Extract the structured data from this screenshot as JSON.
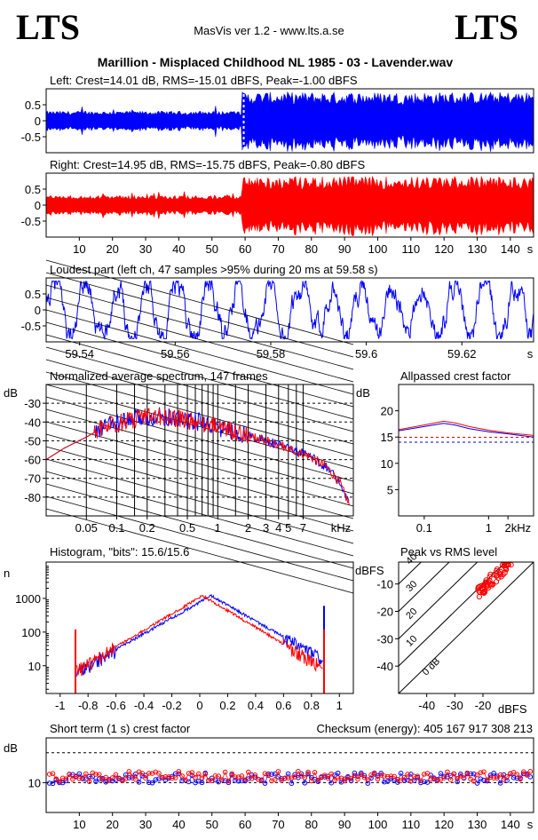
{
  "header": {
    "logo_left": "LTS",
    "logo_right": "LTS",
    "app": "MasVis ver 1.2 - www.lts.a.se",
    "title": "Marillion - Misplaced Childhood NL 1985 - 03 - Lavender.wav"
  },
  "colors": {
    "left": "#0000ff",
    "right": "#ff0000",
    "axis": "#000000"
  },
  "chart_data": [
    {
      "type": "area",
      "id": "left",
      "title": "Left: Crest=14.01 dB, RMS=-15.01 dBFS, Peak=-1.00 dBFS",
      "yticks": [
        "0.5",
        "0",
        "-0.5"
      ],
      "yvals": [
        0.5,
        0,
        -0.5
      ],
      "ylim": [
        -1,
        1
      ],
      "xlim": [
        0,
        147
      ],
      "marker_x": 59.58,
      "envelope": {
        "x": [
          0,
          20,
          40,
          55,
          58.5,
          59.5,
          70,
          100,
          130,
          140,
          147
        ],
        "quiet": 0.25,
        "loud": 0.9
      }
    },
    {
      "type": "area",
      "id": "right",
      "title": "Right: Crest=14.95 dB, RMS=-15.75 dBFS, Peak=-0.80 dBFS",
      "yticks": [
        "0.5",
        "0",
        "-0.5"
      ],
      "yvals": [
        0.5,
        0,
        -0.5
      ],
      "ylim": [
        -1,
        1
      ],
      "xlim": [
        0,
        147
      ],
      "xticks": [
        "10",
        "20",
        "30",
        "40",
        "50",
        "60",
        "70",
        "80",
        "90",
        "100",
        "110",
        "120",
        "130",
        "140",
        "s"
      ],
      "xtickvals": [
        10,
        20,
        30,
        40,
        50,
        60,
        70,
        80,
        90,
        100,
        110,
        120,
        130,
        140
      ]
    },
    {
      "type": "line",
      "id": "loudest",
      "title": "Loudest part (left  ch, 47 samples >95% during 20 ms at 59.58 s)",
      "yticks": [
        "0.5",
        "0",
        "-0.5"
      ],
      "yvals": [
        0.5,
        0,
        -0.5
      ],
      "ylim": [
        -1,
        1
      ],
      "xlim": [
        59.533,
        59.635
      ],
      "xticks": [
        "59.54",
        "59.56",
        "59.58",
        "59.6",
        "59.62",
        "s"
      ],
      "xtickvals": [
        59.54,
        59.56,
        59.58,
        59.6,
        59.62
      ]
    },
    {
      "type": "line",
      "id": "spectrum",
      "title": "Normalized average spectrum, 147 frames",
      "ylabel": "dB",
      "yticks": [
        "-30",
        "-40",
        "-50",
        "-60",
        "-70",
        "-80"
      ],
      "yvals": [
        -30,
        -40,
        -50,
        -60,
        -70,
        -80
      ],
      "ylim": [
        -90,
        -20
      ],
      "xlim": [
        0.02,
        22
      ],
      "xticks": [
        "0.05",
        "0.1",
        "0.2",
        "0.5",
        "1",
        "2",
        "3",
        "4",
        "5",
        "7",
        "kHz"
      ],
      "xtickvals": [
        0.05,
        0.1,
        0.2,
        0.5,
        1,
        2,
        3,
        4,
        5,
        7
      ],
      "curve": {
        "x": [
          0.02,
          0.03,
          0.05,
          0.08,
          0.12,
          0.2,
          0.3,
          0.5,
          0.8,
          1.2,
          2,
          3,
          5,
          8,
          12,
          16,
          20
        ],
        "y": [
          -60,
          -54,
          -48,
          -42,
          -40,
          -37,
          -37,
          -39,
          -41,
          -44,
          -47,
          -50,
          -54,
          -58,
          -64,
          -72,
          -84
        ]
      }
    },
    {
      "type": "line",
      "id": "crest",
      "title": "Allpassed crest factor",
      "ylabel": "dB",
      "yticks": [
        "20",
        "15",
        "10",
        "5"
      ],
      "yvals": [
        20,
        15,
        10,
        5
      ],
      "ylim": [
        0,
        25
      ],
      "xlim": [
        0.04,
        5
      ],
      "xticks": [
        "0.1",
        "1",
        "2",
        "kHz"
      ],
      "xtickvals": [
        0.1,
        1,
        2
      ],
      "dashed_left": 14.01,
      "dashed_right": 14.95,
      "series": [
        {
          "name": "left",
          "x": [
            0.04,
            0.1,
            0.2,
            0.3,
            0.5,
            1,
            2,
            5
          ],
          "y": [
            16.2,
            17,
            17.6,
            17.3,
            16.6,
            16,
            15.6,
            15
          ]
        },
        {
          "name": "right",
          "x": [
            0.04,
            0.1,
            0.2,
            0.3,
            0.5,
            1,
            2,
            5
          ],
          "y": [
            16.4,
            17.3,
            18,
            17.7,
            17,
            16.3,
            15.8,
            15.3
          ]
        }
      ]
    },
    {
      "type": "line",
      "id": "histogram",
      "title": "Histogram, \"bits\": 15.6/15.6",
      "ylabel": "n",
      "yticks": [
        "1000",
        "100",
        "10"
      ],
      "yvals": [
        1000,
        100,
        10
      ],
      "ylim": [
        1.5,
        12000
      ],
      "xlim": [
        -1.1,
        1.1
      ],
      "xticks": [
        "-1",
        "-0.8",
        "-0.6",
        "-0.4",
        "-0.2",
        "0",
        "0.2",
        "0.4",
        "0.6",
        "0.8",
        "1"
      ],
      "xtickvals": [
        -1,
        -0.8,
        -0.6,
        -0.4,
        -0.2,
        0,
        0.2,
        0.4,
        0.6,
        0.8,
        1
      ],
      "spikes": [
        -0.89,
        0.89
      ]
    },
    {
      "type": "scatter",
      "id": "peakrms",
      "title": "Peak vs RMS level",
      "ylabel": "dBFS",
      "xlabel": "dBFS",
      "yticks": [
        "-10",
        "-20",
        "-30",
        "-40"
      ],
      "yvals": [
        -10,
        -20,
        -30,
        -40
      ],
      "ylim": [
        -50,
        -2
      ],
      "xlim": [
        -50,
        -2
      ],
      "xticks": [
        "-40",
        "-30",
        "-20"
      ],
      "xtickvals": [
        -40,
        -30,
        -20
      ],
      "diag_labels": [
        "40",
        "30",
        "20",
        "10",
        "0 dB"
      ],
      "diag_offsets": [
        40,
        30,
        20,
        10,
        0
      ]
    },
    {
      "type": "scatter",
      "id": "shortcrest",
      "title": "Short term (1 s) crest factor",
      "checksum": "Checksum (energy):   405 167 917 308 213",
      "ylabel": "dB",
      "yticks": [
        "10"
      ],
      "yvals": [
        10
      ],
      "ylim": [
        0,
        25
      ],
      "xlim": [
        0,
        147
      ],
      "xticks": [
        "10",
        "20",
        "30",
        "40",
        "50",
        "60",
        "70",
        "80",
        "90",
        "100",
        "110",
        "120",
        "130",
        "140",
        "s"
      ],
      "xtickvals": [
        10,
        20,
        30,
        40,
        50,
        60,
        70,
        80,
        90,
        100,
        110,
        120,
        130,
        140
      ],
      "dashed": [
        10,
        20
      ]
    }
  ]
}
